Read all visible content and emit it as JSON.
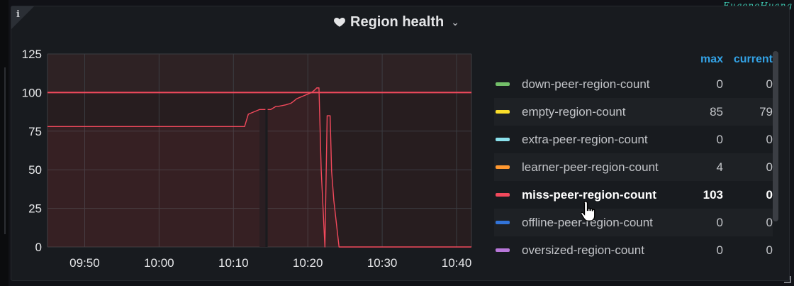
{
  "watermark": "EugeneHuang",
  "panel": {
    "title": "Region health",
    "info_icon": "info-icon",
    "title_icon": "heart-icon",
    "menu_icon": "chevron-down-icon"
  },
  "legend": {
    "columns": {
      "max": "max",
      "current": "current"
    },
    "rows": [
      {
        "name": "down-peer-region-count",
        "color": "#73bf69",
        "max": "0",
        "current": "0"
      },
      {
        "name": "empty-region-count",
        "color": "#fade2a",
        "max": "85",
        "current": "79"
      },
      {
        "name": "extra-peer-region-count",
        "color": "#8ae1ec",
        "max": "0",
        "current": "0"
      },
      {
        "name": "learner-peer-region-count",
        "color": "#ff9830",
        "max": "4",
        "current": "0"
      },
      {
        "name": "miss-peer-region-count",
        "color": "#f2495c",
        "max": "103",
        "current": "0"
      },
      {
        "name": "offline-peer-region-count",
        "color": "#3274d9",
        "max": "0",
        "current": "0"
      },
      {
        "name": "oversized-region-count",
        "color": "#b877d9",
        "max": "0",
        "current": "0"
      }
    ]
  },
  "chart_data": {
    "type": "line",
    "title": "Region health",
    "xlabel": "",
    "ylabel": "",
    "ylim": [
      0,
      125
    ],
    "xlim": [
      "09:45",
      "10:42"
    ],
    "y_ticks": [
      "0",
      "25",
      "50",
      "75",
      "100",
      "125"
    ],
    "x_ticks": [
      "09:50",
      "10:00",
      "10:10",
      "10:20",
      "10:30",
      "10:40"
    ],
    "grid": true,
    "legend_placement": "right",
    "threshold": {
      "value": 100,
      "color": "#f2495c"
    },
    "series": [
      {
        "name": "miss-peer-region-count",
        "color": "#f2495c",
        "x": [
          "09:45",
          "10:01",
          "10:11",
          "10:11.5",
          "10:12",
          "10:13.5",
          "10:14.3",
          "10:14.3",
          "10:14.6",
          "10:15",
          "10:15.7",
          "10:16",
          "10:17",
          "10:17.7",
          "10:18",
          "10:18.5",
          "10:19",
          "10:19.5",
          "10:20",
          "10:20.5",
          "10:21",
          "10:21.2",
          "10:21.5",
          "10:21.8",
          "10:22.3",
          "10:22.6",
          "10:22.7",
          "10:23",
          "10:23.2",
          "10:23.5",
          "10:24.2",
          "10:42"
        ],
        "y": [
          78,
          78,
          78,
          78,
          86,
          89,
          89,
          null,
          89,
          89,
          91,
          91,
          92,
          93,
          94,
          96,
          97,
          98,
          99,
          100,
          102,
          103,
          103,
          50,
          0,
          85,
          85,
          85,
          49,
          30,
          0,
          0
        ]
      }
    ]
  }
}
